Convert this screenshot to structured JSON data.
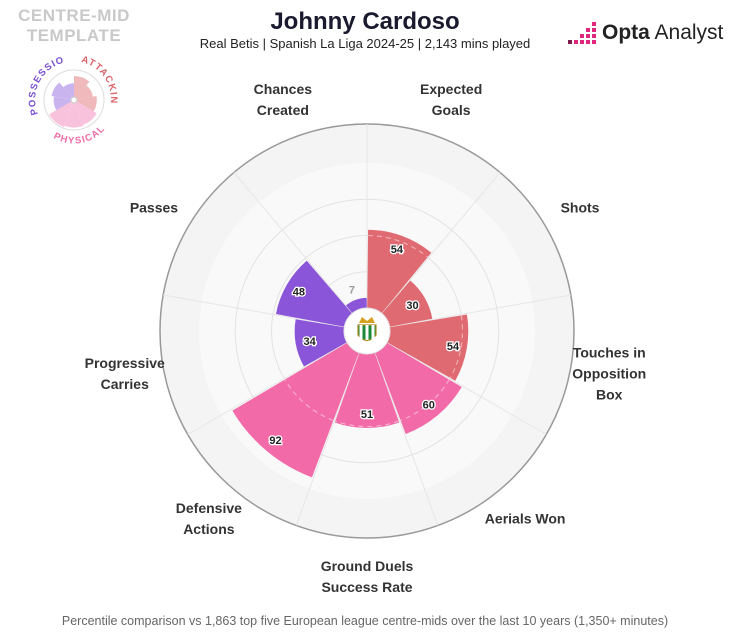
{
  "header": {
    "title": "Johnny Cardoso",
    "subtitle": "Real Betis | Spanish La Liga 2024-25 | 2,143 mins played"
  },
  "template": {
    "label": "CENTRE-MID\nTEMPLATE",
    "groups": [
      {
        "name": "POSSESSION",
        "color": "#7b4fcf"
      },
      {
        "name": "ATTACKING",
        "color": "#d9656b"
      },
      {
        "name": "PHYSICAL",
        "color": "#f06ba7"
      }
    ]
  },
  "brand": {
    "logo_bold": "Opta",
    "logo_rest": " Analyst",
    "icon": "opta-dots-icon"
  },
  "footer": {
    "note": "Percentile comparison vs 1,863 top five European league centre-mids over the last 10 years (1,350+ minutes)"
  },
  "colors": {
    "possession": "#8a55d8",
    "attacking": "#e06a72",
    "physical": "#f36aa8"
  },
  "chart_data": {
    "type": "polar-bar",
    "max": 100,
    "categories": [
      {
        "label": "Expected\nGoals",
        "value": 54,
        "group": "attacking"
      },
      {
        "label": "Shots",
        "value": 30,
        "group": "attacking"
      },
      {
        "label": "Touches in\nOpposition\nBox",
        "value": 54,
        "group": "attacking"
      },
      {
        "label": "Aerials Won",
        "value": 60,
        "group": "physical"
      },
      {
        "label": "Ground Duels\nSuccess Rate",
        "value": 51,
        "group": "physical"
      },
      {
        "label": "Defensive\nActions",
        "value": 92,
        "group": "physical"
      },
      {
        "label": "Progressive\nCarries",
        "value": 34,
        "group": "possession"
      },
      {
        "label": "Passes",
        "value": 48,
        "group": "possession"
      },
      {
        "label": "Chances\nCreated",
        "value": 7,
        "group": "possession"
      }
    ]
  }
}
